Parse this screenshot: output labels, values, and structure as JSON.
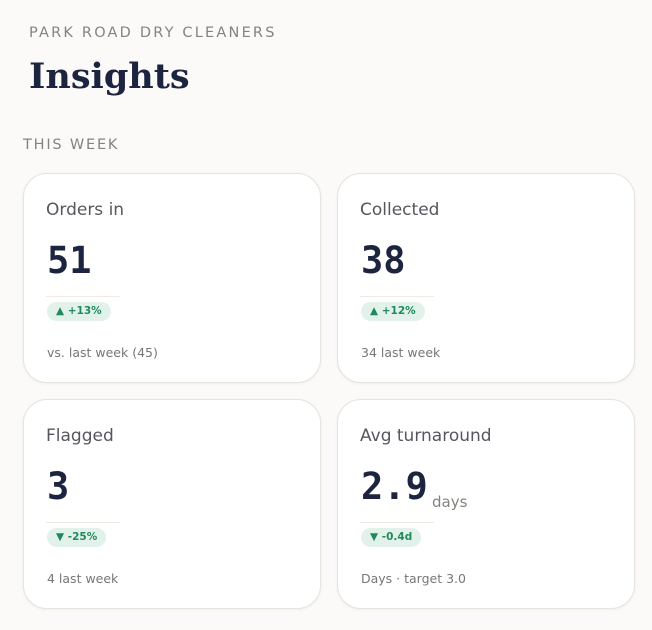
{
  "header": {
    "business_name": "PARK ROAD DRY CLEANERS",
    "page_title": "Insights",
    "section_label": "THIS WEEK"
  },
  "colors": {
    "background": "#fbfaf8",
    "ink": "#1d2440",
    "muted": "#85837f",
    "positive_text": "#1f8a5b",
    "positive_bg": "#e2f2ea"
  },
  "cards": [
    {
      "label": "Orders in",
      "value": "51",
      "unit": "",
      "change": "▲ +13%",
      "change_icon": "triangle-up-icon",
      "footnote": "vs. last week (45)"
    },
    {
      "label": "Collected",
      "value": "38",
      "unit": "",
      "change": "▲ +12%",
      "change_icon": "triangle-up-icon",
      "footnote": "34 last week"
    },
    {
      "label": "Flagged",
      "value": "3",
      "unit": "",
      "change": "▼ -25%",
      "change_icon": "triangle-down-icon",
      "footnote": "4 last week"
    },
    {
      "label": "Avg turnaround",
      "value": "2.9",
      "unit": "days",
      "change": "▼ -0.4d",
      "change_icon": "triangle-down-icon",
      "footnote": "Days · target 3.0"
    }
  ]
}
